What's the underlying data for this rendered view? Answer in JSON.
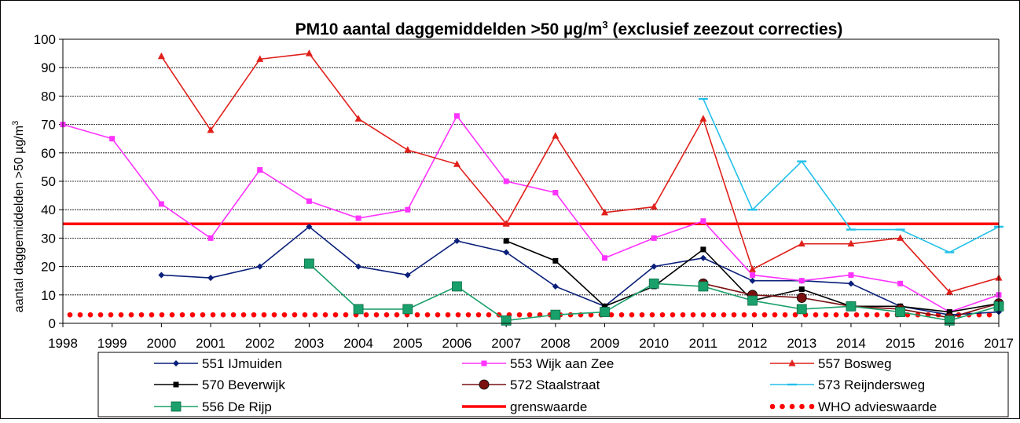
{
  "chart_data": {
    "type": "line",
    "title": "PM10 aantal daggemiddelden  >50 µg/m",
    "title_superscript": "3",
    "title_suffix": "  (exclusief zeezout correcties)",
    "ylabel": "aantal daggemiddelden  >50 µg/m",
    "ylabel_superscript": "3",
    "xlabel": "",
    "ylim": [
      0,
      100
    ],
    "yticks": [
      0,
      10,
      20,
      30,
      40,
      50,
      60,
      70,
      80,
      90,
      100
    ],
    "x": [
      1998,
      1999,
      2000,
      2001,
      2002,
      2003,
      2004,
      2005,
      2006,
      2007,
      2008,
      2009,
      2010,
      2011,
      2012,
      2013,
      2014,
      2015,
      2016,
      2017
    ],
    "grid": "horizontal",
    "legend_position": "bottom",
    "series": [
      {
        "name": "551 IJmuiden",
        "color": "#0a1f7a",
        "marker": "diamond",
        "values": [
          null,
          null,
          17,
          16,
          20,
          34,
          20,
          17,
          29,
          25,
          13,
          6,
          20,
          23,
          15,
          15,
          14,
          6,
          3,
          4
        ]
      },
      {
        "name": "553 Wijk aan Zee",
        "color": "#ff33ff",
        "marker": "square",
        "values": [
          70,
          65,
          42,
          30,
          54,
          43,
          37,
          40,
          73,
          50,
          46,
          23,
          30,
          36,
          17,
          15,
          17,
          14,
          4,
          10
        ]
      },
      {
        "name": "557 Bosweg",
        "color": "#e0201b",
        "marker": "triangle",
        "values": [
          null,
          null,
          94,
          68,
          93,
          95,
          72,
          61,
          56,
          35,
          66,
          39,
          41,
          72,
          19,
          28,
          28,
          30,
          11,
          16
        ]
      },
      {
        "name": "570 Beverwijk",
        "color": "#000000",
        "marker": "square",
        "values": [
          null,
          null,
          null,
          null,
          null,
          null,
          null,
          null,
          null,
          29,
          22,
          6,
          13,
          26,
          8,
          12,
          6,
          6,
          4,
          7
        ]
      },
      {
        "name": "572 Staalstraat",
        "color": "#7a1010",
        "marker": "circle",
        "values": [
          null,
          null,
          null,
          null,
          null,
          null,
          null,
          null,
          null,
          null,
          null,
          null,
          null,
          14,
          10,
          9,
          6,
          5,
          2,
          7
        ]
      },
      {
        "name": "573 Reijndersweg",
        "color": "#22c0ea",
        "marker": "dash",
        "values": [
          null,
          null,
          null,
          null,
          null,
          null,
          null,
          null,
          null,
          null,
          null,
          null,
          null,
          79,
          40,
          57,
          33,
          33,
          25,
          34
        ]
      },
      {
        "name": "556 De Rijp",
        "color": "#1aa06a",
        "marker": "bigsquare",
        "values": [
          null,
          null,
          null,
          null,
          null,
          21,
          5,
          5,
          13,
          1,
          3,
          4,
          14,
          13,
          8,
          5,
          6,
          4,
          1,
          6
        ]
      }
    ],
    "reference_lines": [
      {
        "name": "grenswaarde",
        "value": 35,
        "color": "#ff0000",
        "style": "solid"
      },
      {
        "name": "WHO advieswaarde",
        "value": 3,
        "color": "#ff0000",
        "style": "dotted"
      }
    ]
  }
}
